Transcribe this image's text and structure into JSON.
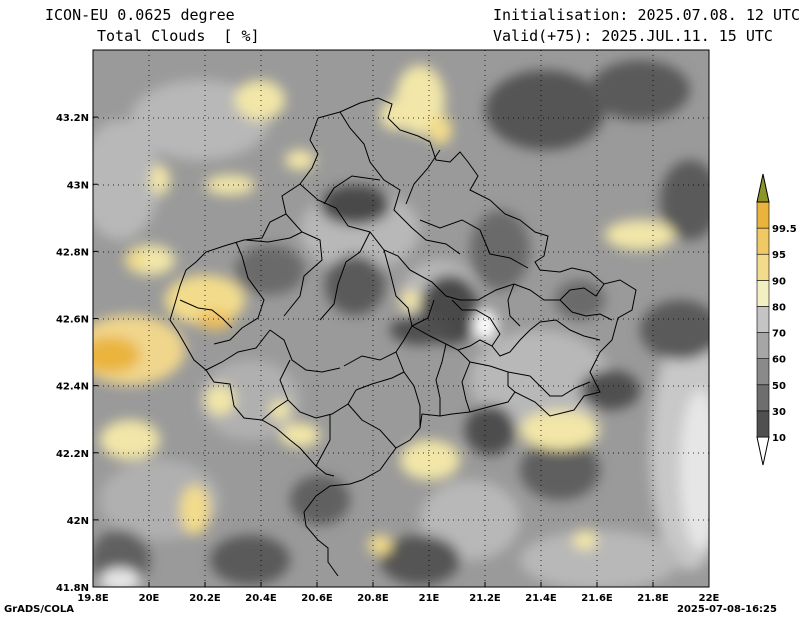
{
  "header": {
    "model": "ICON-EU 0.0625 degree",
    "variable": "Total Clouds  [ %]",
    "initialisation": "Initialisation: 2025.07.08. 12 UTC",
    "valid": "Valid(+75): 2025.JUL.11. 15 UTC"
  },
  "footer": {
    "credit": "GrADS/COLA",
    "timestamp": "2025-07-08-16:25"
  },
  "axes": {
    "lon_labels": [
      "19.8E",
      "20E",
      "20.2E",
      "20.4E",
      "20.6E",
      "20.8E",
      "21E",
      "21.2E",
      "21.4E",
      "21.6E",
      "21.8E",
      "22E"
    ],
    "lon_values": [
      19.8,
      20.0,
      20.2,
      20.4,
      20.6,
      20.8,
      21.0,
      21.2,
      21.4,
      21.6,
      21.8,
      22.0
    ],
    "lat_labels": [
      "41.8N",
      "42N",
      "42.2N",
      "42.4N",
      "42.6N",
      "42.8N",
      "43N",
      "43.2N"
    ],
    "lat_values": [
      41.8,
      42.0,
      42.2,
      42.4,
      42.6,
      42.8,
      43.0,
      43.2
    ],
    "lon_range": [
      19.8,
      22.0
    ],
    "lat_range": [
      41.8,
      43.4
    ],
    "grid": "dotted"
  },
  "colorbar": {
    "levels": [
      "10",
      "30",
      "50",
      "60",
      "70",
      "80",
      "90",
      "95",
      "99.5"
    ],
    "colors": [
      "#ffffff",
      "#505050",
      "#6e6e6e",
      "#8a8a8a",
      "#a6a6a6",
      "#c4c4c4",
      "#f2f0c0",
      "#f2dc8c",
      "#f0c864",
      "#eab43c",
      "#8c9628"
    ]
  }
}
